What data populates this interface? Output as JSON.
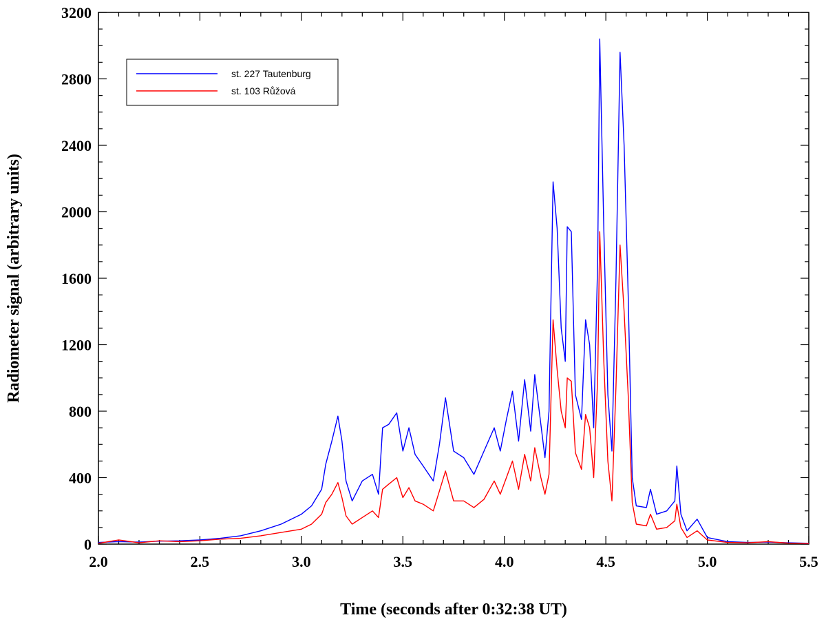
{
  "chart_data": {
    "type": "line",
    "xlabel": "Time (seconds after 0:32:38 UT)",
    "ylabel": "Radiometer signal (arbitrary units)",
    "xlim": [
      2.0,
      5.5
    ],
    "ylim": [
      0,
      3200
    ],
    "x_ticks": [
      2.0,
      2.5,
      3.0,
      3.5,
      4.0,
      4.5,
      5.0,
      5.5
    ],
    "x_tick_labels": [
      "2.0",
      "2.5",
      "3.0",
      "3.5",
      "4.0",
      "4.5",
      "5.0",
      "5.5"
    ],
    "y_ticks": [
      0,
      400,
      800,
      1200,
      1600,
      2000,
      2400,
      2800,
      3200
    ],
    "y_tick_labels": [
      "0",
      "400",
      "800",
      "1200",
      "1600",
      "2000",
      "2400",
      "2800",
      "3200"
    ],
    "grid": false,
    "legend_position": "top-left",
    "series": [
      {
        "name": "st. 227 Tautenburg",
        "color": "#0000ff",
        "points": [
          [
            2.0,
            10
          ],
          [
            2.1,
            15
          ],
          [
            2.2,
            12
          ],
          [
            2.3,
            18
          ],
          [
            2.4,
            20
          ],
          [
            2.5,
            25
          ],
          [
            2.6,
            35
          ],
          [
            2.7,
            50
          ],
          [
            2.8,
            80
          ],
          [
            2.9,
            120
          ],
          [
            3.0,
            180
          ],
          [
            3.05,
            230
          ],
          [
            3.1,
            330
          ],
          [
            3.12,
            480
          ],
          [
            3.15,
            620
          ],
          [
            3.18,
            770
          ],
          [
            3.2,
            620
          ],
          [
            3.22,
            380
          ],
          [
            3.25,
            260
          ],
          [
            3.3,
            380
          ],
          [
            3.35,
            420
          ],
          [
            3.38,
            300
          ],
          [
            3.4,
            700
          ],
          [
            3.43,
            720
          ],
          [
            3.47,
            790
          ],
          [
            3.5,
            560
          ],
          [
            3.53,
            700
          ],
          [
            3.56,
            540
          ],
          [
            3.6,
            470
          ],
          [
            3.65,
            380
          ],
          [
            3.68,
            600
          ],
          [
            3.71,
            880
          ],
          [
            3.75,
            560
          ],
          [
            3.8,
            520
          ],
          [
            3.85,
            420
          ],
          [
            3.9,
            560
          ],
          [
            3.95,
            700
          ],
          [
            3.98,
            560
          ],
          [
            4.01,
            750
          ],
          [
            4.04,
            920
          ],
          [
            4.07,
            620
          ],
          [
            4.1,
            990
          ],
          [
            4.13,
            680
          ],
          [
            4.15,
            1020
          ],
          [
            4.18,
            720
          ],
          [
            4.2,
            520
          ],
          [
            4.22,
            800
          ],
          [
            4.24,
            2180
          ],
          [
            4.26,
            1900
          ],
          [
            4.28,
            1300
          ],
          [
            4.3,
            1100
          ],
          [
            4.31,
            1910
          ],
          [
            4.33,
            1880
          ],
          [
            4.35,
            900
          ],
          [
            4.38,
            750
          ],
          [
            4.4,
            1350
          ],
          [
            4.42,
            1200
          ],
          [
            4.44,
            700
          ],
          [
            4.46,
            1700
          ],
          [
            4.47,
            3040
          ],
          [
            4.49,
            1900
          ],
          [
            4.51,
            900
          ],
          [
            4.53,
            560
          ],
          [
            4.55,
            1600
          ],
          [
            4.57,
            2960
          ],
          [
            4.59,
            2400
          ],
          [
            4.61,
            1500
          ],
          [
            4.63,
            400
          ],
          [
            4.65,
            230
          ],
          [
            4.7,
            220
          ],
          [
            4.72,
            330
          ],
          [
            4.75,
            180
          ],
          [
            4.8,
            200
          ],
          [
            4.84,
            260
          ],
          [
            4.85,
            470
          ],
          [
            4.87,
            180
          ],
          [
            4.9,
            80
          ],
          [
            4.95,
            150
          ],
          [
            5.0,
            40
          ],
          [
            5.1,
            15
          ],
          [
            5.2,
            10
          ],
          [
            5.3,
            12
          ],
          [
            5.4,
            8
          ],
          [
            5.5,
            5
          ]
        ]
      },
      {
        "name": "st. 103 Růžová",
        "color": "#ff0000",
        "points": [
          [
            2.0,
            5
          ],
          [
            2.1,
            25
          ],
          [
            2.2,
            8
          ],
          [
            2.3,
            20
          ],
          [
            2.4,
            15
          ],
          [
            2.5,
            20
          ],
          [
            2.6,
            30
          ],
          [
            2.7,
            35
          ],
          [
            2.8,
            50
          ],
          [
            2.9,
            70
          ],
          [
            3.0,
            90
          ],
          [
            3.05,
            120
          ],
          [
            3.1,
            180
          ],
          [
            3.12,
            250
          ],
          [
            3.15,
            300
          ],
          [
            3.18,
            370
          ],
          [
            3.2,
            280
          ],
          [
            3.22,
            170
          ],
          [
            3.25,
            120
          ],
          [
            3.3,
            160
          ],
          [
            3.35,
            200
          ],
          [
            3.38,
            160
          ],
          [
            3.4,
            330
          ],
          [
            3.43,
            360
          ],
          [
            3.47,
            400
          ],
          [
            3.5,
            280
          ],
          [
            3.53,
            340
          ],
          [
            3.56,
            260
          ],
          [
            3.6,
            240
          ],
          [
            3.65,
            200
          ],
          [
            3.68,
            320
          ],
          [
            3.71,
            440
          ],
          [
            3.75,
            260
          ],
          [
            3.8,
            260
          ],
          [
            3.85,
            220
          ],
          [
            3.9,
            270
          ],
          [
            3.95,
            380
          ],
          [
            3.98,
            300
          ],
          [
            4.01,
            400
          ],
          [
            4.04,
            500
          ],
          [
            4.07,
            330
          ],
          [
            4.1,
            540
          ],
          [
            4.13,
            380
          ],
          [
            4.15,
            580
          ],
          [
            4.18,
            400
          ],
          [
            4.2,
            300
          ],
          [
            4.22,
            420
          ],
          [
            4.24,
            1350
          ],
          [
            4.26,
            1050
          ],
          [
            4.28,
            800
          ],
          [
            4.3,
            700
          ],
          [
            4.31,
            1000
          ],
          [
            4.33,
            980
          ],
          [
            4.35,
            550
          ],
          [
            4.38,
            450
          ],
          [
            4.4,
            780
          ],
          [
            4.42,
            700
          ],
          [
            4.44,
            400
          ],
          [
            4.46,
            1000
          ],
          [
            4.47,
            1880
          ],
          [
            4.49,
            1100
          ],
          [
            4.51,
            500
          ],
          [
            4.53,
            260
          ],
          [
            4.55,
            950
          ],
          [
            4.57,
            1800
          ],
          [
            4.59,
            1400
          ],
          [
            4.61,
            900
          ],
          [
            4.63,
            250
          ],
          [
            4.65,
            120
          ],
          [
            4.7,
            110
          ],
          [
            4.72,
            180
          ],
          [
            4.75,
            90
          ],
          [
            4.8,
            100
          ],
          [
            4.84,
            140
          ],
          [
            4.85,
            240
          ],
          [
            4.87,
            100
          ],
          [
            4.9,
            40
          ],
          [
            4.95,
            80
          ],
          [
            5.0,
            25
          ],
          [
            5.1,
            10
          ],
          [
            5.2,
            8
          ],
          [
            5.3,
            15
          ],
          [
            5.4,
            6
          ],
          [
            5.5,
            3
          ]
        ]
      }
    ]
  }
}
